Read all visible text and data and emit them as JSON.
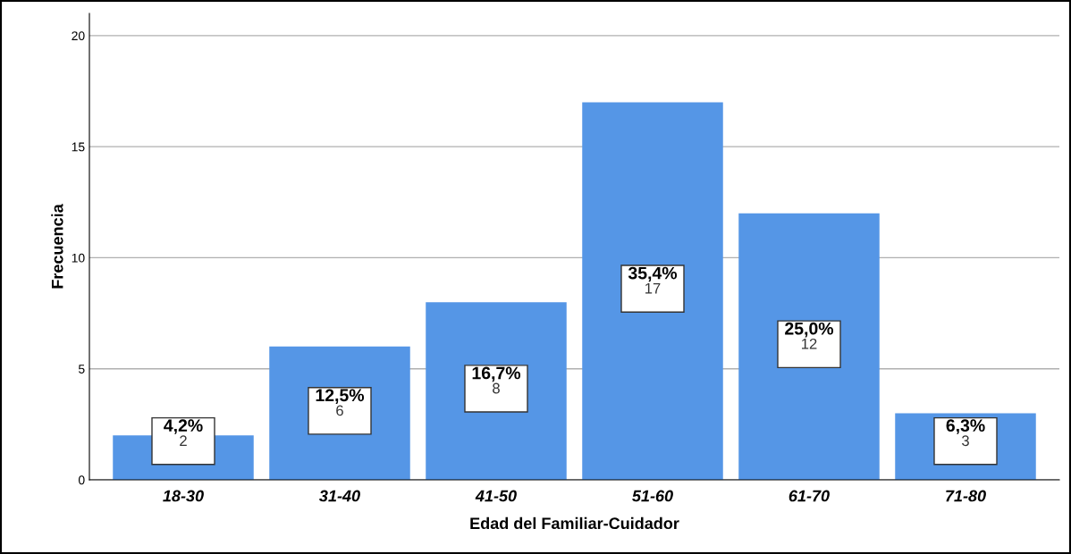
{
  "chart_data": {
    "type": "bar",
    "xlabel": "Edad del Familiar-Cuidador",
    "ylabel": "Frecuencia",
    "categories": [
      "18-30",
      "31-40",
      "41-50",
      "51-60",
      "61-70",
      "71-80"
    ],
    "values": [
      2,
      6,
      8,
      17,
      12,
      3
    ],
    "value_labels": [
      "4,2%\n2",
      "12,5%\n6",
      "16,7%\n8",
      "35,4%\n17",
      "25,0%\n12",
      "6,3%\n3"
    ],
    "color": "#5596e6",
    "ylim": [
      0,
      21
    ],
    "yticks": [
      0,
      5,
      10,
      15,
      20
    ],
    "grid": "y"
  }
}
